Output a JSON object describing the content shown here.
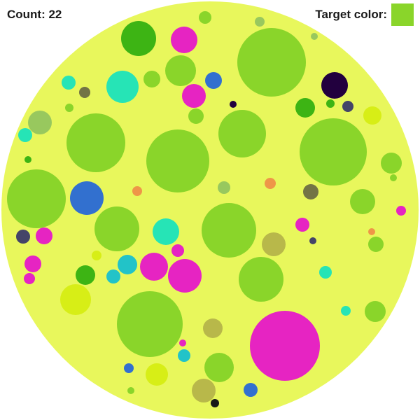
{
  "hud": {
    "count_label": "Count: 22",
    "target_label": "Target color:",
    "target_color": "#8ad52a"
  },
  "colors": {
    "board": "#e8f75c",
    "lime": "#8ad52a",
    "green": "#3db414",
    "magenta": "#e624c2",
    "cyan": "#26e4b6",
    "teal": "#22c3c8",
    "blue": "#3270cf",
    "navy": "#444468",
    "darkpurple": "#22003e",
    "yellow": "#d7ee16",
    "sage": "#98c85e",
    "olive": "#737445",
    "khaki": "#b8b84a",
    "orange": "#ee9648",
    "black": "#181818"
  }
}
